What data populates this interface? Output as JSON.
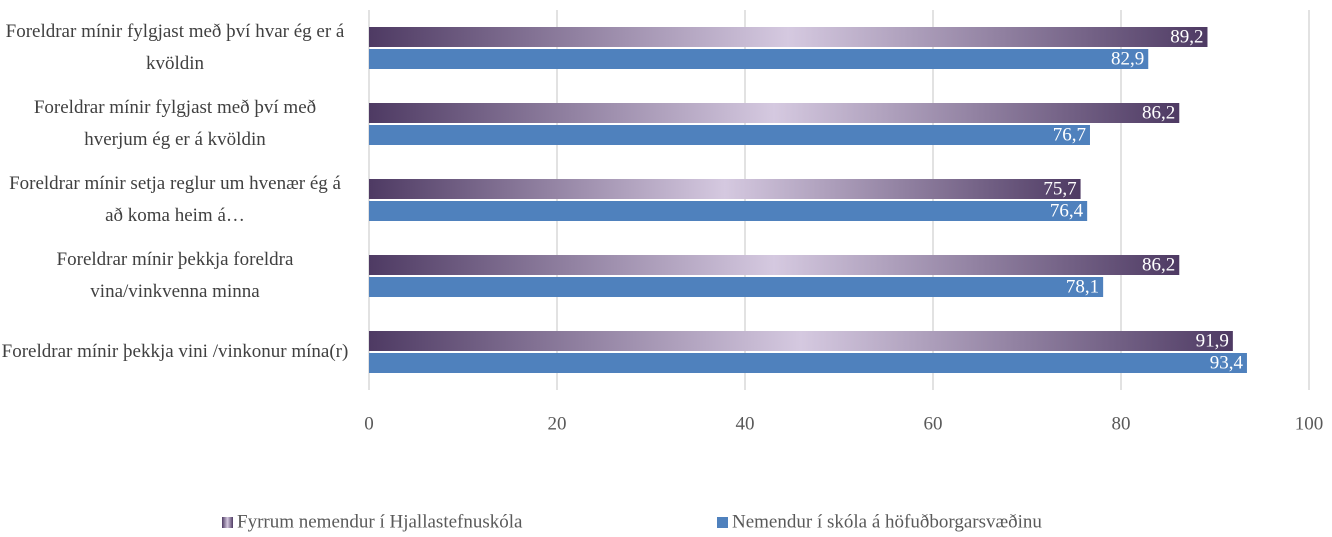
{
  "chart_data": {
    "type": "bar",
    "orientation": "horizontal",
    "categories": [
      "Foreldrar mínir fylgjast með því hvar ég er á kvöldin",
      "Foreldrar mínir fylgjast með því með hverjum ég er á kvöldin",
      "Foreldrar mínir setja reglur um hvenær ég á að koma heim á…",
      "Foreldrar mínir þekkja foreldra vina/vinkvenna minna",
      "Foreldrar mínir þekkja vini /vinkonur mína(r)"
    ],
    "series": [
      {
        "name": "Fyrrum nemendur í Hjallastefnuskóla",
        "color": "#4e3a63",
        "values": [
          89.2,
          86.2,
          75.7,
          86.2,
          91.9
        ],
        "value_labels": [
          "89,2",
          "86,2",
          "75,7",
          "86,2",
          "91,9"
        ]
      },
      {
        "name": "Nemendur í skóla á höfuðborgarsvæðinu",
        "color": "#4f81bd",
        "values": [
          82.9,
          76.7,
          76.4,
          78.1,
          93.4
        ],
        "value_labels": [
          "82,9",
          "76,7",
          "76,4",
          "78,1",
          "93,4"
        ]
      }
    ],
    "xlim": [
      0,
      100
    ],
    "xticks": [
      0,
      20,
      40,
      60,
      80,
      100
    ],
    "grid": true,
    "legend": "bottom"
  }
}
